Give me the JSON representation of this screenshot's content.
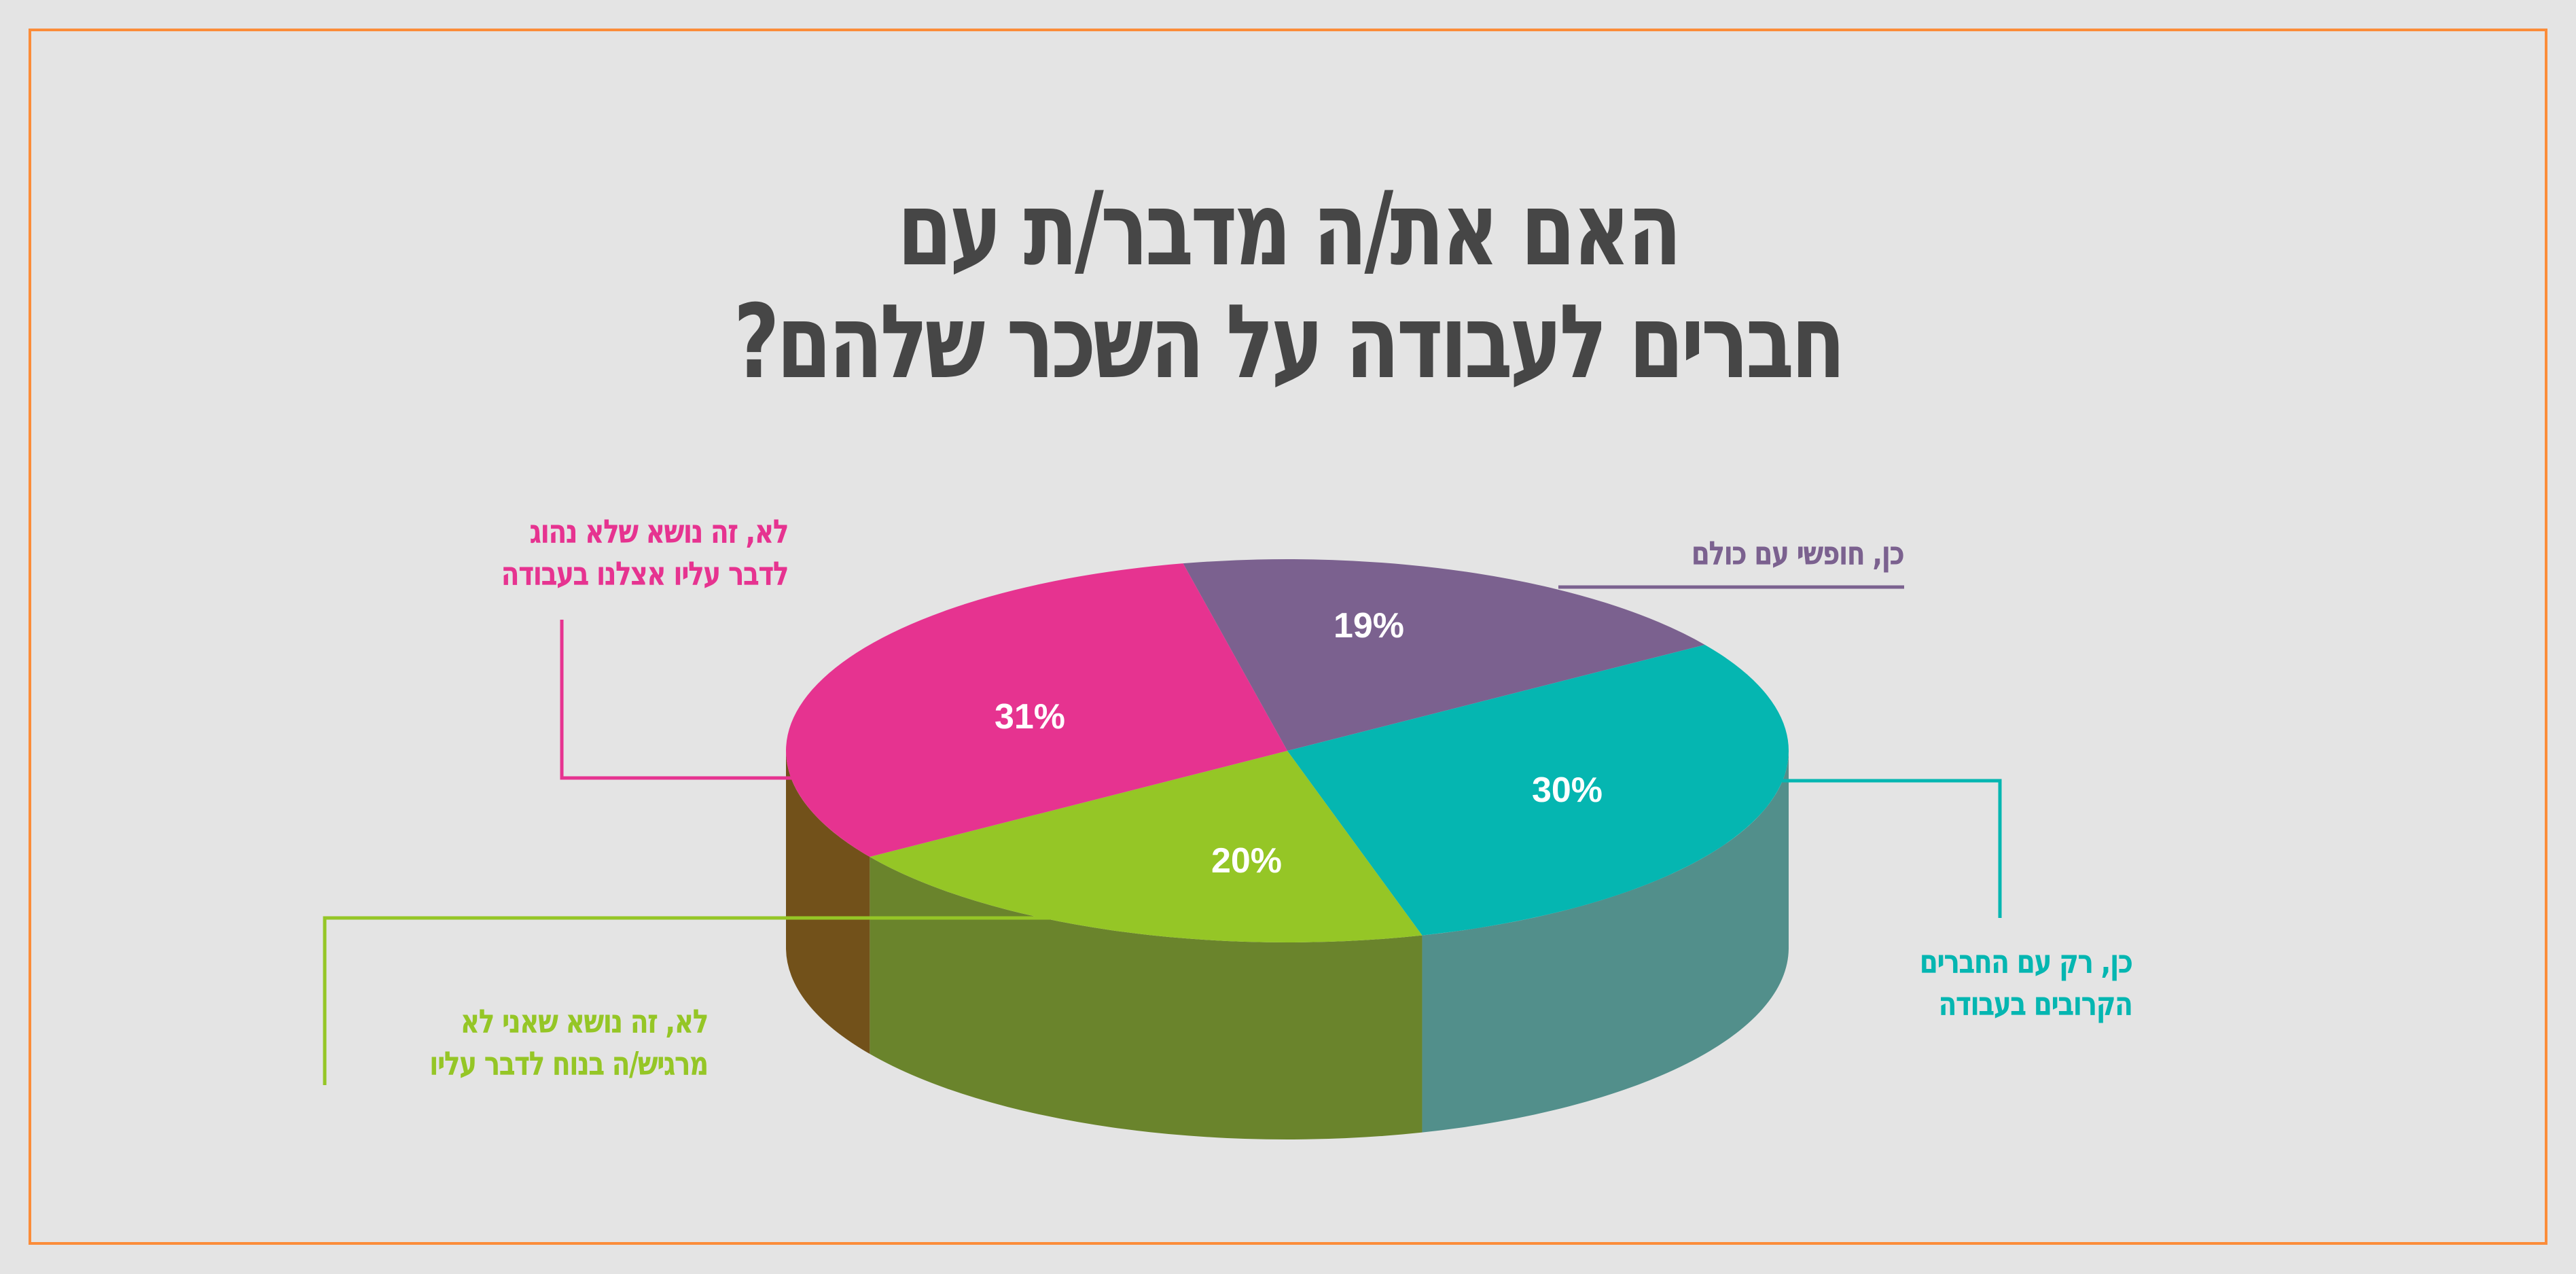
{
  "title": {
    "line1": "האם את/ה מדבר/ת עם",
    "line2": "חברים לעבודה על השכר שלהם?"
  },
  "frame_color": "#fb8c39",
  "background_color": "#e4e4e4",
  "title_color": "#464646",
  "chart_data": {
    "type": "pie",
    "style": "3d",
    "title": "האם את/ה מדבר/ת עם חברים לעבודה על השכר שלהם?",
    "categories": [
      "כן, חופשי עם כולם",
      "כן, רק עם החברים הקרובים בעבודה",
      "לא, זה נושא שאני לא מרגיש/ה בנוח לדבר עליו",
      "לא, זה נושא שלא נהוג לדבר עליו אצלנו בעבודה"
    ],
    "values": [
      19,
      30,
      20,
      31
    ],
    "unit": "%",
    "colors": [
      "#7b618f",
      "#05b6b1",
      "#95c626",
      "#e63390"
    ],
    "side_colors": [
      "#6a5580",
      "#528f8b",
      "#6a842c",
      "#72511a"
    ],
    "legend_position": "callout labels"
  },
  "slices": [
    {
      "pct_label": "19%",
      "label_lines": [
        "כן, חופשי עם כולם"
      ],
      "color": "#7b618f"
    },
    {
      "pct_label": "30%",
      "label_lines": [
        "כן, רק עם החברים",
        "הקרובים בעבודה"
      ],
      "color": "#05b6b1"
    },
    {
      "pct_label": "20%",
      "label_lines": [
        "לא, זה נושא שאני לא",
        "מרגיש/ה בנוח לדבר עליו"
      ],
      "color": "#95c626"
    },
    {
      "pct_label": "31%",
      "label_lines": [
        "לא, זה נושא שלא נהוג",
        "לדבר עליו אצלנו בעבודה"
      ],
      "color": "#e63390"
    }
  ]
}
